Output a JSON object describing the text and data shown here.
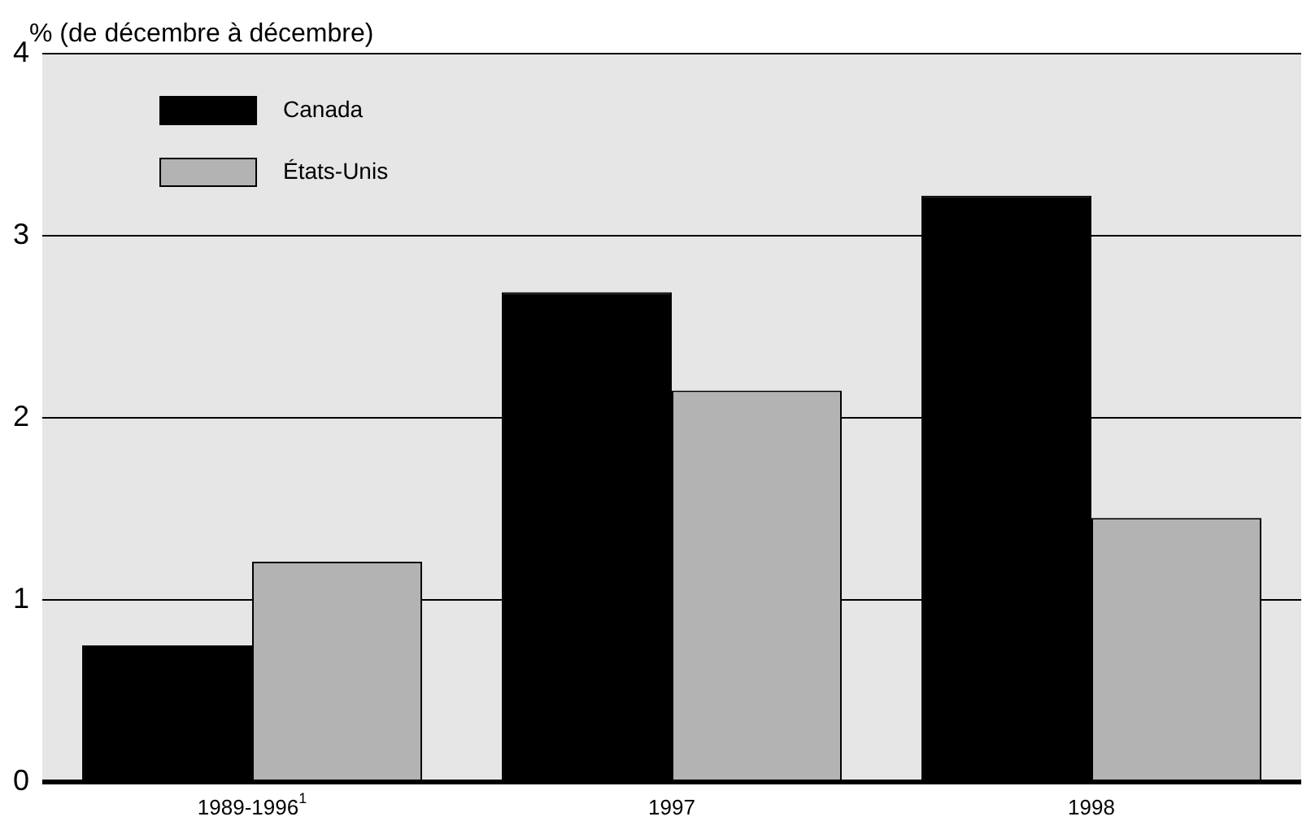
{
  "chart_data": {
    "type": "bar",
    "ylabel": "% (de décembre à décembre)",
    "categories": [
      "1989-1996$^{1}$",
      "1997",
      "1998"
    ],
    "series": [
      {
        "name": "Canada",
        "color": "#000000",
        "values": [
          0.75,
          2.69,
          3.22
        ]
      },
      {
        "name": "États-Unis",
        "color": "#b3b3b3",
        "values": [
          1.21,
          2.15,
          1.45
        ]
      }
    ],
    "ylim": [
      0,
      4
    ],
    "yticks": [
      0,
      1,
      2,
      3,
      4
    ],
    "grid": "y",
    "legend": "top left"
  }
}
